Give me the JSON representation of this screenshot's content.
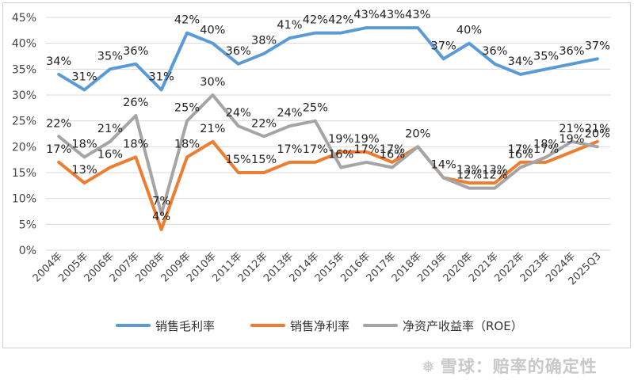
{
  "chart_data": {
    "type": "line",
    "title": "",
    "xlabel": "",
    "ylabel": "",
    "ylim": [
      0,
      45
    ],
    "yticks": [
      "0%",
      "5%",
      "10%",
      "15%",
      "20%",
      "25%",
      "30%",
      "35%",
      "40%",
      "45%"
    ],
    "grid": true,
    "legend_position": "bottom",
    "categories": [
      "2004年",
      "2005年",
      "2006年",
      "2007年",
      "2008年",
      "2009年",
      "2010年",
      "2011年",
      "2012年",
      "2013年",
      "2014年",
      "2015年",
      "2016年",
      "2017年",
      "2018年",
      "2019年",
      "2020年",
      "2021年",
      "2022年",
      "2023年",
      "2024年",
      "2025Q3"
    ],
    "series": [
      {
        "name": "销售毛利率",
        "color": "#5b9bd5",
        "values": [
          34,
          31,
          35,
          36,
          31,
          42,
          40,
          36,
          38,
          41,
          42,
          42,
          43,
          43,
          43,
          37,
          40,
          36,
          34,
          35,
          36,
          37
        ],
        "labels": [
          "34%",
          "31%",
          "35%",
          "36%",
          "31%",
          "42%",
          "40%",
          "36%",
          "38%",
          "41%",
          "42%",
          "42%",
          "43%",
          "43%",
          "43%",
          "37%",
          "40%",
          "36%",
          "34%",
          "35%",
          "36%",
          "37%"
        ]
      },
      {
        "name": "销售净利率",
        "color": "#ed7d31",
        "values": [
          17,
          13,
          16,
          18,
          4,
          18,
          21,
          15,
          15,
          17,
          17,
          19,
          19,
          17,
          20,
          14,
          13,
          13,
          17,
          17,
          19,
          21
        ],
        "labels": [
          "17%",
          "13%",
          "16%",
          "18%",
          "4%",
          "18%",
          "21%",
          "15%",
          "15%",
          "17%",
          "17%",
          "19%",
          "19%",
          "17%",
          "20%",
          "14%",
          "13%",
          "13%",
          "17%",
          "17%",
          "19%",
          "21%"
        ]
      },
      {
        "name": "净资产收益率（ROE）",
        "color": "#a5a5a5",
        "values": [
          22,
          18,
          21,
          26,
          7,
          25,
          30,
          24,
          22,
          24,
          25,
          16,
          17,
          16,
          20,
          14,
          12,
          12,
          16,
          18,
          21,
          20
        ],
        "labels": [
          "22%",
          "18%",
          "21%",
          "26%",
          "7%",
          "25%",
          "30%",
          "24%",
          "22%",
          "24%",
          "25%",
          "16%",
          "17%",
          "16%",
          "",
          "",
          "12%",
          "12%",
          "16%",
          "18%",
          "21%",
          "20%"
        ]
      }
    ]
  },
  "watermark": {
    "icon": "❅",
    "text": "雪球：赔率的确定性"
  }
}
